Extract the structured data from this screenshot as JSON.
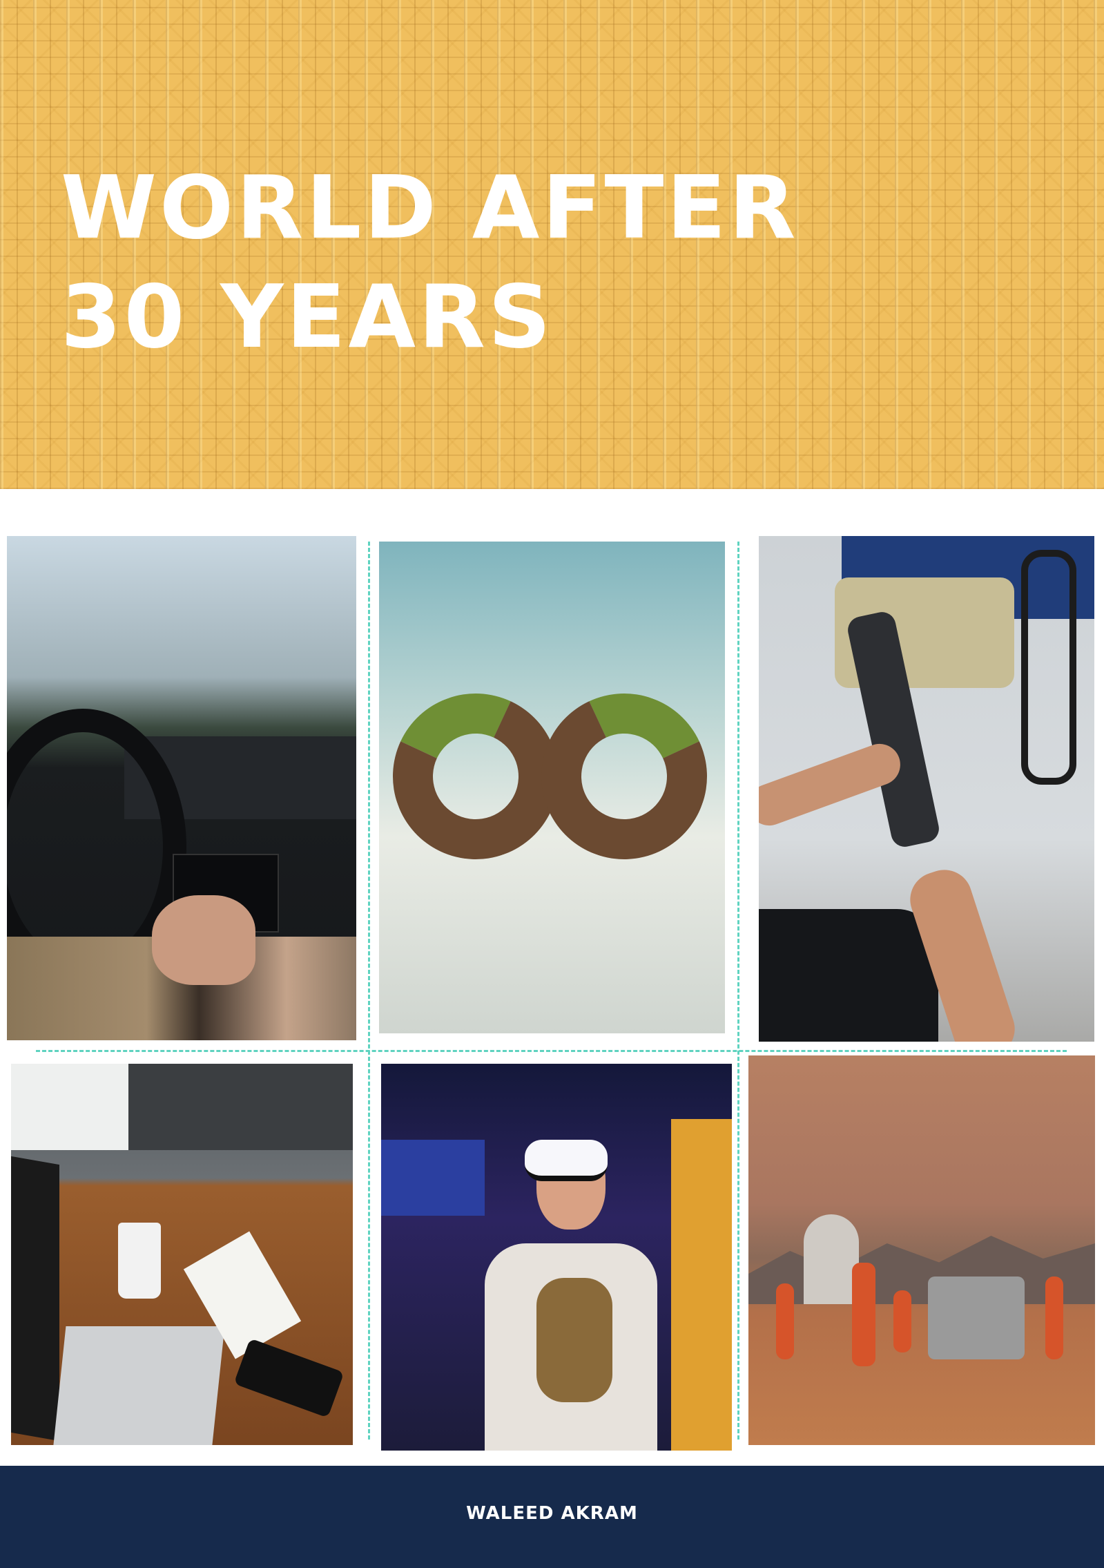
{
  "cover": {
    "title_lines": [
      "WORLD AFTER",
      "30 YEARS"
    ],
    "author": "WALEED AKRAM"
  },
  "colors": {
    "header_bg": "#f0bf5e",
    "footer_bg": "#162a4c",
    "divider": "#5fd3c0",
    "title_text": "#ffffff"
  },
  "photos": [
    {
      "subject": "car-interior-rain"
    },
    {
      "subject": "infinity-farmland"
    },
    {
      "subject": "prosthetic-arm-handshake"
    },
    {
      "subject": "laptop-desk-coffee"
    },
    {
      "subject": "vr-headset-player"
    },
    {
      "subject": "mars-explorers-rover"
    }
  ]
}
